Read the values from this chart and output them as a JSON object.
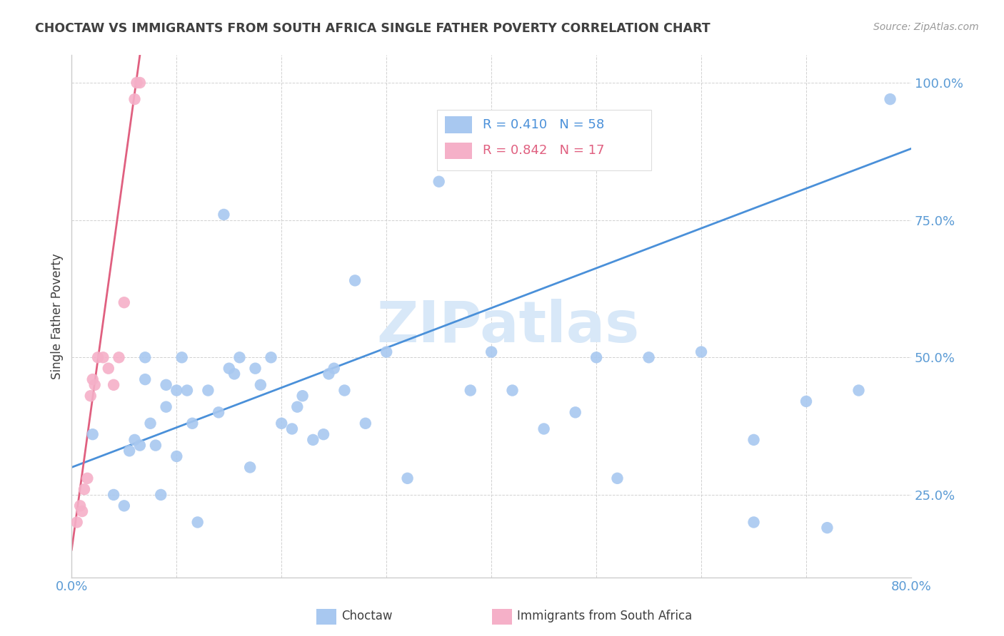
{
  "title": "CHOCTAW VS IMMIGRANTS FROM SOUTH AFRICA SINGLE FATHER POVERTY CORRELATION CHART",
  "source": "Source: ZipAtlas.com",
  "ylabel": "Single Father Poverty",
  "legend_label1": "Choctaw",
  "legend_label2": "Immigrants from South Africa",
  "R1": 0.41,
  "N1": 58,
  "R2": 0.842,
  "N2": 17,
  "color_blue": "#A8C8F0",
  "color_pink": "#F5B0C8",
  "color_blue_line": "#4A90D9",
  "color_pink_line": "#E06080",
  "color_axis_labels": "#5B9BD5",
  "color_title": "#404040",
  "color_source": "#999999",
  "color_watermark": "#D8E8F8",
  "xlim": [
    0.0,
    0.8
  ],
  "ylim": [
    0.1,
    1.05
  ],
  "blue_x": [
    0.02,
    0.04,
    0.05,
    0.055,
    0.06,
    0.065,
    0.07,
    0.07,
    0.075,
    0.08,
    0.085,
    0.09,
    0.09,
    0.1,
    0.1,
    0.105,
    0.11,
    0.115,
    0.12,
    0.13,
    0.14,
    0.145,
    0.15,
    0.155,
    0.16,
    0.17,
    0.175,
    0.18,
    0.19,
    0.2,
    0.21,
    0.215,
    0.22,
    0.23,
    0.24,
    0.245,
    0.25,
    0.26,
    0.27,
    0.28,
    0.3,
    0.32,
    0.35,
    0.38,
    0.4,
    0.42,
    0.45,
    0.48,
    0.5,
    0.52,
    0.55,
    0.6,
    0.65,
    0.65,
    0.7,
    0.72,
    0.75,
    0.78
  ],
  "blue_y": [
    0.36,
    0.25,
    0.23,
    0.33,
    0.35,
    0.34,
    0.5,
    0.46,
    0.38,
    0.34,
    0.25,
    0.45,
    0.41,
    0.32,
    0.44,
    0.5,
    0.44,
    0.38,
    0.2,
    0.44,
    0.4,
    0.76,
    0.48,
    0.47,
    0.5,
    0.3,
    0.48,
    0.45,
    0.5,
    0.38,
    0.37,
    0.41,
    0.43,
    0.35,
    0.36,
    0.47,
    0.48,
    0.44,
    0.64,
    0.38,
    0.51,
    0.28,
    0.82,
    0.44,
    0.51,
    0.44,
    0.37,
    0.4,
    0.5,
    0.28,
    0.5,
    0.51,
    0.2,
    0.35,
    0.42,
    0.19,
    0.44,
    0.97
  ],
  "pink_x": [
    0.005,
    0.008,
    0.01,
    0.012,
    0.015,
    0.018,
    0.02,
    0.022,
    0.025,
    0.03,
    0.035,
    0.04,
    0.045,
    0.05,
    0.06,
    0.062,
    0.065
  ],
  "pink_y": [
    0.2,
    0.23,
    0.22,
    0.26,
    0.28,
    0.43,
    0.46,
    0.45,
    0.5,
    0.5,
    0.48,
    0.45,
    0.5,
    0.6,
    0.97,
    1.0,
    1.0
  ],
  "blue_line_x": [
    0.0,
    0.8
  ],
  "blue_line_y": [
    0.3,
    0.88
  ],
  "pink_line_x": [
    0.0,
    0.065
  ],
  "pink_line_y": [
    0.15,
    1.05
  ]
}
